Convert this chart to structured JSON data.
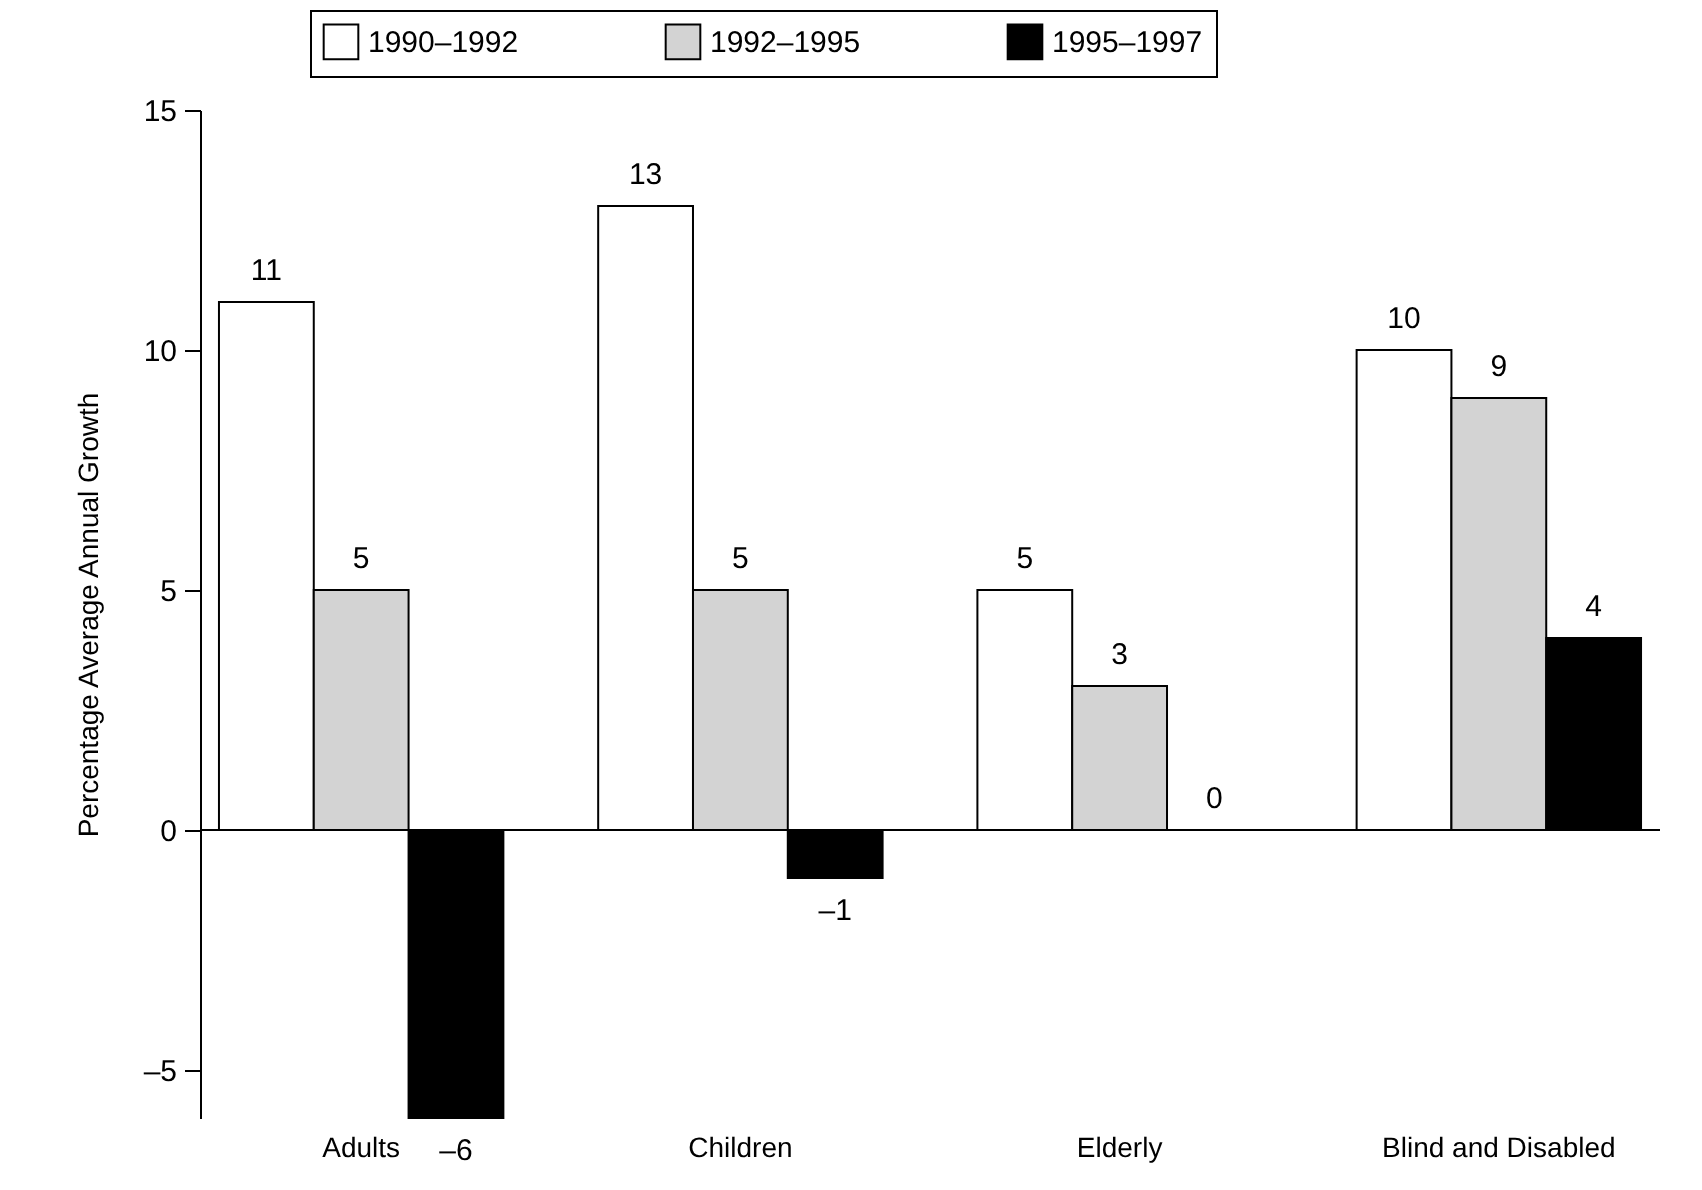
{
  "chart_data": {
    "type": "bar",
    "ylabel": "Percentage Average Annual Growth",
    "categories": [
      "Adults",
      "Children",
      "Elderly",
      "Blind and Disabled"
    ],
    "series": [
      {
        "name": "1990–1992",
        "color": "#ffffff",
        "values": [
          11,
          13,
          5,
          10
        ],
        "value_labels": [
          "11",
          "13",
          "5",
          "10"
        ]
      },
      {
        "name": "1992–1995",
        "color": "#d3d3d3",
        "values": [
          5,
          5,
          3,
          9
        ],
        "value_labels": [
          "5",
          "5",
          "3",
          "9"
        ]
      },
      {
        "name": "1995–1997",
        "color": "#000000",
        "values": [
          -6,
          -1,
          0,
          4
        ],
        "value_labels": [
          "–6",
          "–1",
          "0",
          "4"
        ]
      }
    ],
    "ylim": [
      -6,
      15
    ],
    "yticks": [
      {
        "value": -5,
        "label": "–5"
      },
      0,
      5,
      10,
      15
    ],
    "ref_lines": [
      {
        "axis": "y",
        "value": 0,
        "color": "#000000"
      }
    ],
    "grid": false,
    "legend": "top"
  }
}
